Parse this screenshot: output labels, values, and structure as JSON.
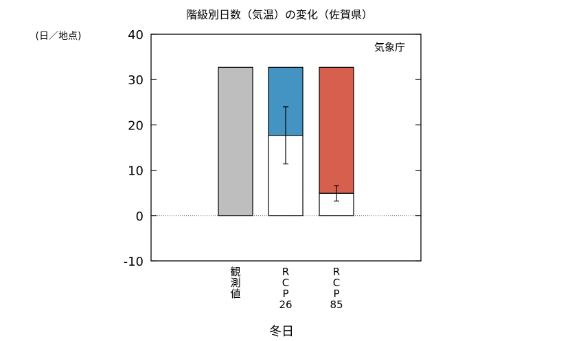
{
  "chart_data": {
    "type": "bar",
    "title": "階級別日数（気温）の変化（佐賀県）",
    "unit_label": "(日／地点)",
    "credit": "気象庁",
    "xlabel": "冬日",
    "ylim": [
      -10,
      40
    ],
    "yticks": [
      -10,
      0,
      10,
      20,
      30,
      40
    ],
    "categories": [
      {
        "lines": [
          "観",
          "測",
          "値"
        ]
      },
      {
        "lines": [
          "R",
          "C",
          "P",
          "26"
        ]
      },
      {
        "lines": [
          "R",
          "C",
          "P",
          "85"
        ]
      }
    ],
    "bars": [
      {
        "name": "観測値",
        "total": 32.7,
        "future": null,
        "change_color": "#bebebe",
        "error": null
      },
      {
        "name": "RCP26",
        "total": 32.7,
        "future": 17.7,
        "change_color": "#4393c3",
        "error": [
          11.4,
          24.0
        ]
      },
      {
        "name": "RCP85",
        "total": 32.7,
        "future": 4.9,
        "change_color": "#d6604d",
        "error": [
          3.2,
          6.6
        ]
      }
    ]
  }
}
